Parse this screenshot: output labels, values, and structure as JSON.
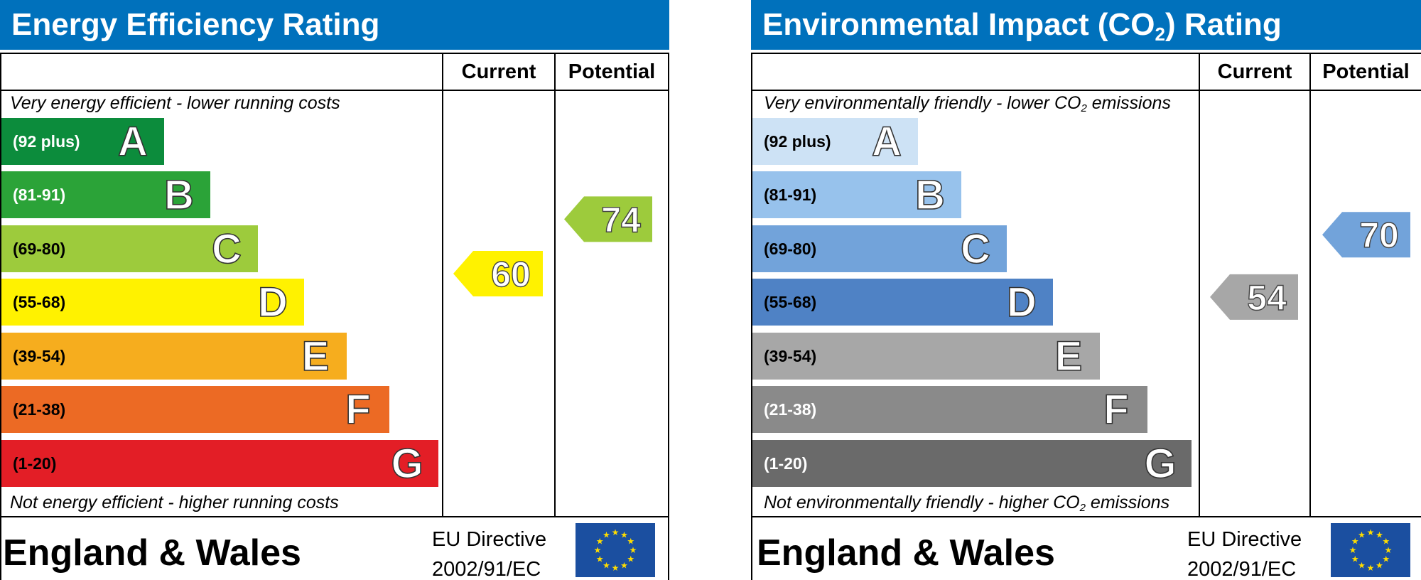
{
  "chart_data": [
    {
      "type": "bar",
      "title": "Energy Efficiency Rating",
      "columns": [
        "Current",
        "Potential"
      ],
      "top_caption": "Very energy efficient - lower running costs",
      "bottom_caption": "Not energy efficient - higher running costs",
      "categories": [
        "A",
        "B",
        "C",
        "D",
        "E",
        "F",
        "G"
      ],
      "ranges": [
        "(92 plus)",
        "(81-91)",
        "(69-80)",
        "(55-68)",
        "(39-54)",
        "(21-38)",
        "(1-20)"
      ],
      "band_colors": [
        "#0c8c3c",
        "#2ba338",
        "#9dcb3c",
        "#fff200",
        "#f6ad1e",
        "#ec6a24",
        "#e31e26"
      ],
      "range_text_colors": [
        "#ffffff",
        "#ffffff",
        "#000000",
        "#000000",
        "#000000",
        "#000000",
        "#000000"
      ],
      "current": {
        "value": 60,
        "band": "D",
        "color": "#fff200"
      },
      "potential": {
        "value": 74,
        "band": "C",
        "color": "#9dcb3c"
      },
      "footer": {
        "region": "England & Wales",
        "directive_line1": "EU Directive",
        "directive_line2": "2002/91/EC"
      }
    },
    {
      "type": "bar",
      "title_main": "Environmental Impact (CO",
      "title_sub": "2",
      "title_end": ") Rating",
      "columns": [
        "Current",
        "Potential"
      ],
      "top_caption_main": "Very environmentally friendly - lower CO",
      "top_caption_sub": "2",
      "top_caption_end": " emissions",
      "bottom_caption_main": "Not environmentally friendly - higher CO",
      "bottom_caption_sub": "2",
      "bottom_caption_end": " emissions",
      "categories": [
        "A",
        "B",
        "C",
        "D",
        "E",
        "F",
        "G"
      ],
      "ranges": [
        "(92 plus)",
        "(81-91)",
        "(69-80)",
        "(55-68)",
        "(39-54)",
        "(21-38)",
        "(1-20)"
      ],
      "band_colors": [
        "#cde2f5",
        "#97c2ec",
        "#72a3da",
        "#4f82c5",
        "#a7a7a7",
        "#8a8a8a",
        "#6a6a6a"
      ],
      "range_text_colors": [
        "#000000",
        "#000000",
        "#000000",
        "#000000",
        "#000000",
        "#ffffff",
        "#ffffff"
      ],
      "current": {
        "value": 54,
        "band": "E",
        "color": "#a7a7a7"
      },
      "potential": {
        "value": 70,
        "band": "C",
        "color": "#72a3da"
      },
      "footer": {
        "region": "England & Wales",
        "directive_line1": "EU Directive",
        "directive_line2": "2002/91/EC"
      }
    }
  ]
}
